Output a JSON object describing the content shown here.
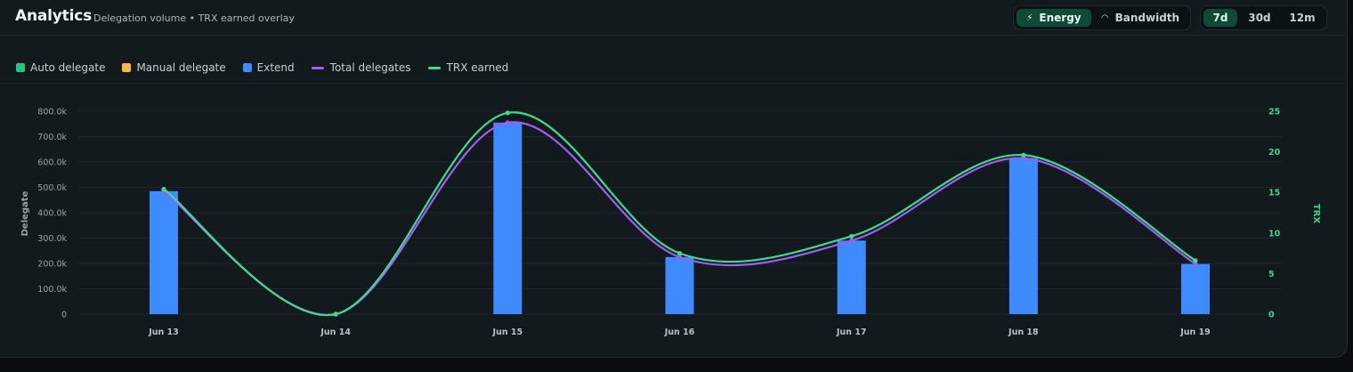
{
  "header": {
    "title": "Analytics",
    "subtitle": "Delegation volume • TRX earned overlay"
  },
  "metric_toggle": {
    "options": [
      {
        "label": "Energy",
        "icon": "bolt-icon",
        "glyph": "⚡",
        "active": true
      },
      {
        "label": "Bandwidth",
        "icon": "gauge-icon",
        "glyph": "◠",
        "active": false
      }
    ]
  },
  "range_toggle": {
    "options": [
      {
        "label": "7d",
        "active": true
      },
      {
        "label": "30d",
        "active": false
      },
      {
        "label": "12m",
        "active": false
      }
    ]
  },
  "legend": [
    {
      "label": "Auto delegate",
      "kind": "box",
      "color": "#22c97a"
    },
    {
      "label": "Manual delegate",
      "kind": "box",
      "color": "#f5b93e"
    },
    {
      "label": "Extend",
      "kind": "box",
      "color": "#3d8bff"
    },
    {
      "label": "Total delegates",
      "kind": "line",
      "color": "#a05cf5"
    },
    {
      "label": "TRX earned",
      "kind": "line",
      "color": "#3ddc8c"
    }
  ],
  "chart_data": {
    "type": "bar",
    "categories": [
      "Jun 13",
      "Jun 14",
      "Jun 15",
      "Jun 16",
      "Jun 17",
      "Jun 18",
      "Jun 19"
    ],
    "series": [
      {
        "name": "Auto delegate",
        "kind": "bar",
        "axis": "left",
        "color": "#22c97a",
        "values": [
          0,
          0,
          0,
          0,
          0,
          0,
          0
        ]
      },
      {
        "name": "Manual delegate",
        "kind": "bar",
        "axis": "left",
        "color": "#f5b93e",
        "values": [
          0,
          0,
          0,
          0,
          0,
          0,
          0
        ]
      },
      {
        "name": "Extend",
        "kind": "bar",
        "axis": "left",
        "color": "#3d8bff",
        "values": [
          485000,
          0,
          755000,
          225000,
          290000,
          615000,
          198000
        ]
      },
      {
        "name": "Total delegates",
        "kind": "line",
        "axis": "left",
        "color": "#a05cf5",
        "values": [
          485000,
          0,
          755000,
          225000,
          290000,
          615000,
          198000
        ]
      },
      {
        "name": "TRX earned",
        "kind": "line",
        "axis": "right",
        "color": "#3ddc8c",
        "values": [
          15.4,
          0,
          24.8,
          7.5,
          9.6,
          19.6,
          6.6
        ]
      }
    ],
    "ylabel": "Delegate",
    "ylabel_right": "TRX",
    "ylim": [
      0,
      800000
    ],
    "ylim_right": [
      0,
      25
    ],
    "yticks": [
      "0",
      "100.0k",
      "200.0k",
      "300.0k",
      "400.0k",
      "500.0k",
      "600.0k",
      "700.0k",
      "800.0k"
    ],
    "yticks_right": [
      "0",
      "5",
      "10",
      "15",
      "20",
      "25"
    ],
    "grid": true
  }
}
